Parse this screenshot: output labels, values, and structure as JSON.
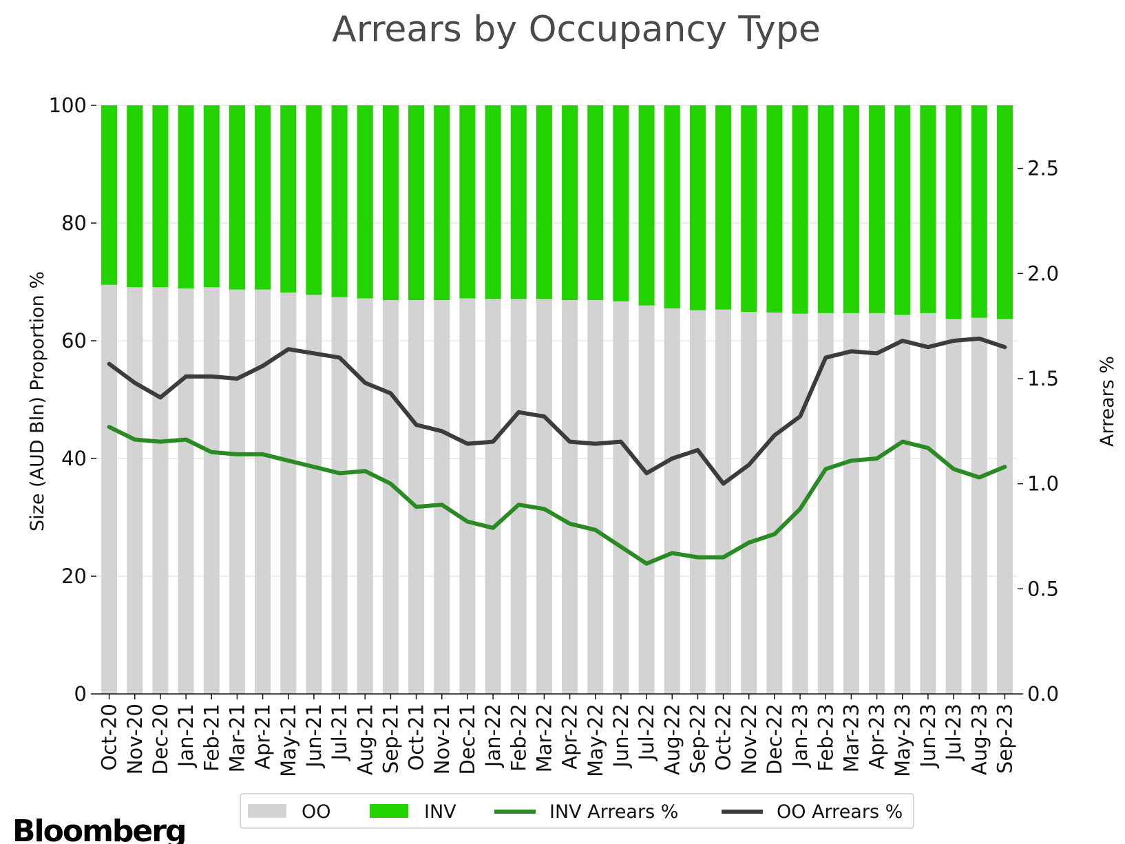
{
  "chart_data": {
    "type": "bar",
    "title": "Arrears by Occupancy Type",
    "ylabel": "Size (AUD Bln) Proportion %",
    "y2label": "Arrears %",
    "ylim": [
      0,
      100
    ],
    "y2lim": [
      0,
      2.8
    ],
    "yticks": [
      "0",
      "20",
      "40",
      "60",
      "80",
      "100"
    ],
    "y2ticks": [
      "0.0",
      "0.5",
      "1.0",
      "1.5",
      "2.0",
      "2.5"
    ],
    "grid": true,
    "legend_position": "bottom",
    "categories": [
      "Oct-20",
      "Nov-20",
      "Dec-20",
      "Jan-21",
      "Feb-21",
      "Mar-21",
      "Apr-21",
      "May-21",
      "Jun-21",
      "Jul-21",
      "Aug-21",
      "Sep-21",
      "Oct-21",
      "Nov-21",
      "Dec-21",
      "Jan-22",
      "Feb-22",
      "Mar-22",
      "Apr-22",
      "May-22",
      "Jun-22",
      "Jul-22",
      "Aug-22",
      "Sep-22",
      "Oct-22",
      "Nov-22",
      "Dec-22",
      "Jan-23",
      "Feb-23",
      "Mar-23",
      "Apr-23",
      "May-23",
      "Jun-23",
      "Jul-23",
      "Aug-23",
      "Sep-23"
    ],
    "bar_series": [
      {
        "name": "OO",
        "color": "#d3d3d3",
        "values": [
          69.5,
          69.1,
          69.1,
          68.9,
          69.1,
          68.7,
          68.7,
          68.2,
          67.8,
          67.4,
          67.2,
          66.9,
          66.9,
          66.9,
          67.2,
          67.1,
          67.1,
          67.1,
          66.9,
          66.9,
          66.7,
          66.0,
          65.5,
          65.2,
          65.3,
          64.9,
          64.8,
          64.6,
          64.7,
          64.7,
          64.7,
          64.4,
          64.7,
          63.7,
          63.9,
          63.7
        ]
      },
      {
        "name": "INV",
        "color": "#22d300",
        "values": [
          30.5,
          30.9,
          30.9,
          31.1,
          30.9,
          31.3,
          31.3,
          31.8,
          32.2,
          32.6,
          32.8,
          33.1,
          33.1,
          33.1,
          32.8,
          32.9,
          32.9,
          32.9,
          33.1,
          33.1,
          33.3,
          34.0,
          34.5,
          34.8,
          34.7,
          35.1,
          35.2,
          35.4,
          35.3,
          35.3,
          35.3,
          35.6,
          35.3,
          36.3,
          36.1,
          36.3
        ]
      }
    ],
    "line_series": [
      {
        "name": "INV Arrears %",
        "color": "#2a8a24",
        "axis": "right",
        "values": [
          1.27,
          1.21,
          1.2,
          1.21,
          1.15,
          1.14,
          1.14,
          1.11,
          1.08,
          1.05,
          1.06,
          1.0,
          0.89,
          0.9,
          0.82,
          0.79,
          0.9,
          0.88,
          0.81,
          0.78,
          0.7,
          0.62,
          0.67,
          0.65,
          0.65,
          0.72,
          0.76,
          0.88,
          1.07,
          1.11,
          1.12,
          1.2,
          1.17,
          1.07,
          1.03,
          1.08
        ]
      },
      {
        "name": "OO Arrears %",
        "color": "#3c3c3c",
        "axis": "right",
        "values": [
          1.57,
          1.48,
          1.41,
          1.51,
          1.51,
          1.5,
          1.56,
          1.64,
          1.62,
          1.6,
          1.48,
          1.43,
          1.28,
          1.25,
          1.19,
          1.2,
          1.34,
          1.32,
          1.2,
          1.19,
          1.2,
          1.05,
          1.12,
          1.16,
          1.0,
          1.09,
          1.23,
          1.32,
          1.6,
          1.63,
          1.62,
          1.68,
          1.65,
          1.68,
          1.69,
          1.65
        ]
      }
    ]
  },
  "brand": {
    "logo_text": "Bloomberg"
  }
}
